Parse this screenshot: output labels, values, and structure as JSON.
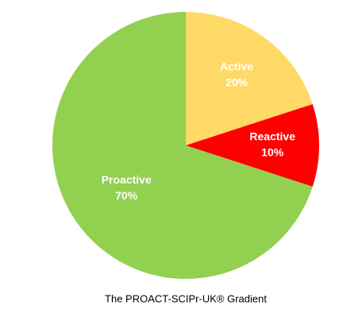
{
  "chart_data": {
    "type": "pie",
    "title": "The PROACT-SCIPr-UK® Gradient",
    "categories": [
      "Active",
      "Reactive",
      "Proactive"
    ],
    "values": [
      20,
      10,
      70
    ],
    "value_labels": [
      "20%",
      "10%",
      "70%"
    ],
    "colors": [
      "#FFD966",
      "#FF0000",
      "#92D050"
    ]
  }
}
